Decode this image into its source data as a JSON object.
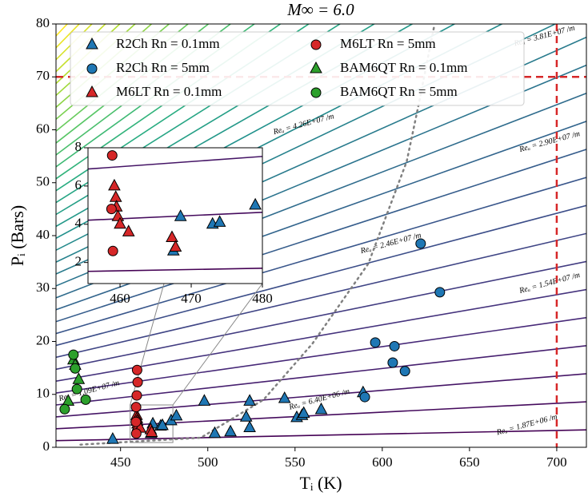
{
  "chart_data": {
    "type": "scatter",
    "title": "M∞ = 6.0",
    "x_label": "Tᵢ (K)",
    "y_label": "Pᵢ (Bars)",
    "xlim": [
      413,
      717
    ],
    "ylim": [
      0,
      80
    ],
    "xticks": [
      450,
      500,
      550,
      600,
      650,
      700
    ],
    "yticks": [
      0,
      10,
      20,
      30,
      40,
      50,
      60,
      70,
      80
    ],
    "legend": "upper left",
    "series": [
      {
        "name": "R2Ch Rn = 0.1mm",
        "color": "#1f77b4",
        "marker": "triangle",
        "x": [
          445.5,
          467.5,
          468.5,
          473,
          474,
          479,
          482,
          498,
          504,
          513,
          522,
          524,
          524,
          544,
          551,
          554,
          555,
          565,
          589
        ],
        "y": [
          1.5,
          2.6,
          4.4,
          4.0,
          4.1,
          5.0,
          5.9,
          8.7,
          2.6,
          2.9,
          5.7,
          3.7,
          8.7,
          9.2,
          5.6,
          6.0,
          6.4,
          7.1,
          10.3
        ]
      },
      {
        "name": "R2Ch Rn = 5mm",
        "color": "#1f77b4",
        "marker": "circle",
        "x": [
          590,
          596,
          606,
          607,
          613,
          622,
          633
        ],
        "y": [
          9.5,
          19.8,
          16.0,
          19.1,
          14.4,
          38.5,
          29.3
        ]
      },
      {
        "name": "M6LT Rn = 0.1mm",
        "color": "#d62728",
        "marker": "triangle",
        "x": [
          459.2,
          459.4,
          459.5,
          459.7,
          460,
          461.2,
          467.3,
          467.8
        ],
        "y": [
          6.0,
          5.4,
          4.9,
          4.4,
          4.0,
          3.6,
          3.3,
          2.8
        ]
      },
      {
        "name": "M6LT Rn = 5mm",
        "color": "#d62728",
        "marker": "circle",
        "x": [
          459.5,
          459.8,
          459.3,
          458.9,
          458.8,
          459
        ],
        "y": [
          14.6,
          12.3,
          9.8,
          7.6,
          4.8,
          2.6
        ]
      },
      {
        "name": "BAM6QT Rn = 0.1mm",
        "color": "#2ca02c",
        "marker": "triangle",
        "x": [
          420,
          423,
          424,
          426
        ],
        "y": [
          8.7,
          16.5,
          15.5,
          12.8
        ]
      },
      {
        "name": "BAM6QT Rn = 5mm",
        "color": "#2ca02c",
        "marker": "circle",
        "x": [
          418,
          423,
          424,
          425,
          430
        ],
        "y": [
          7.2,
          17.5,
          14.9,
          11.0,
          9.0
        ]
      }
    ],
    "curve": {
      "color": "#808080",
      "style": "dotted",
      "x": [
        427,
        496,
        532,
        560,
        592,
        614,
        621,
        630
      ],
      "y": [
        0.5,
        1.8,
        9,
        19.6,
        34.7,
        54,
        65,
        80
      ]
    },
    "reference_lines": {
      "color": "#d62728",
      "style": "dashed",
      "x": 700,
      "y": 70
    },
    "contours": {
      "colormap": "viridis",
      "values": [
        [
          1.25,
          3.3
        ],
        [
          3.5,
          8.6
        ],
        [
          5.75,
          13.9
        ],
        [
          8,
          19.2
        ],
        [
          10.25,
          24.5
        ],
        [
          12.5,
          29.8
        ],
        [
          14.75,
          35.1
        ],
        [
          17,
          40.4
        ],
        [
          19.25,
          45.7
        ],
        [
          21.5,
          51
        ],
        [
          23.75,
          56.3
        ],
        [
          26,
          61.6
        ],
        [
          28.25,
          66.9
        ],
        [
          30.5,
          72.2
        ],
        [
          32.75,
          77.5
        ],
        [
          35,
          82.8
        ],
        [
          37.25,
          88.1
        ],
        [
          39.5,
          93.4
        ],
        [
          41.75,
          98.7
        ],
        [
          44,
          104
        ],
        [
          46.25,
          109.3
        ],
        [
          48.5,
          114.6
        ],
        [
          50.75,
          119.9
        ],
        [
          53,
          125.2
        ],
        [
          55.25,
          130.5
        ],
        [
          57.5,
          135.8
        ],
        [
          59.75,
          141.1
        ],
        [
          62,
          146.4
        ],
        [
          64.25,
          151.7
        ],
        [
          66.5,
          157
        ],
        [
          68.75,
          162.3
        ],
        [
          71,
          167.6
        ],
        [
          73.25,
          172.9
        ],
        [
          75.5,
          178.2
        ],
        [
          77.75,
          183.5
        ]
      ]
    },
    "contour_labels": [
      {
        "text": "Reᵤ = 1.87E+06 /m",
        "x": 683,
        "y": 4.2
      },
      {
        "text": "Reᵤ = 6.40E+06 /m",
        "x": 564,
        "y": 9
      },
      {
        "text": "Reᵤ = 1.09E+07 /m",
        "x": 432,
        "y": 10.6
      },
      {
        "text": "Reᵤ = 1.54E+07 /m",
        "x": 696,
        "y": 31
      },
      {
        "text": "Reᵤ = 2.46E+07 /m",
        "x": 605,
        "y": 38.5
      },
      {
        "text": "Reᵤ = 2.90E+07 /m",
        "x": 696,
        "y": 57.7
      },
      {
        "text": "Reᵤ = 4.26E+07 /m",
        "x": 555,
        "y": 61
      },
      {
        "text": "Reᵤ = 3.81E+07 /m",
        "x": 693,
        "y": 77.7
      }
    ],
    "inset": {
      "xlim": [
        455.5,
        480
      ],
      "ylim": [
        0.9,
        8
      ],
      "xticks": [
        460,
        470,
        480
      ],
      "yticks": [
        2,
        4,
        6,
        8
      ]
    }
  }
}
